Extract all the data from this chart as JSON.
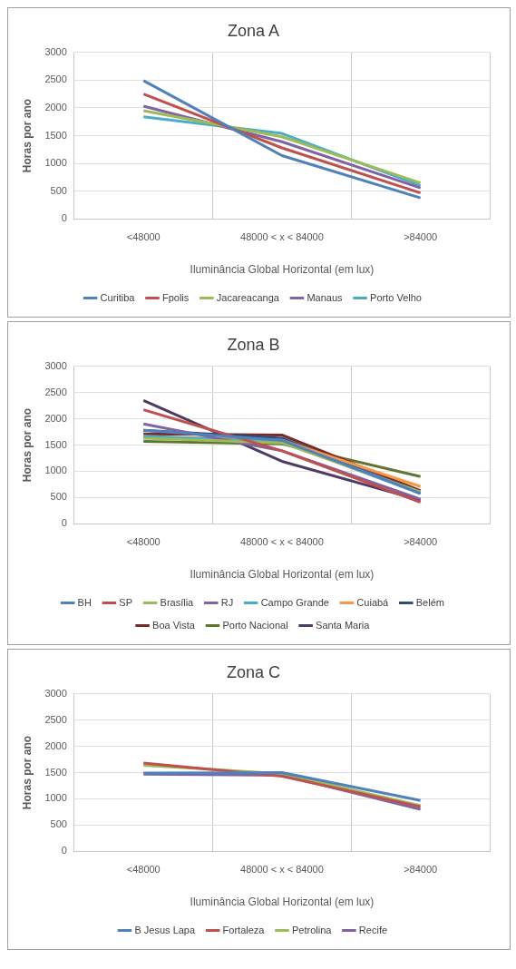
{
  "chart_data": [
    {
      "type": "line",
      "title": "Zona A",
      "xlabel": "Iluminância Global Horizontal (em lux)",
      "ylabel": "Horas por ano",
      "categories": [
        "<48000",
        "48000 < x < 84000",
        ">84000"
      ],
      "ylim": [
        0,
        3000
      ],
      "yticks": [
        0,
        500,
        1000,
        1500,
        2000,
        2500,
        3000
      ],
      "grid": true,
      "legend": "bottom",
      "marker": "none",
      "series": [
        {
          "name": "Curitiba",
          "color": "#4f81bd",
          "values": [
            2490,
            1140,
            380
          ]
        },
        {
          "name": "Fpolis",
          "color": "#c0504d",
          "values": [
            2250,
            1280,
            470
          ]
        },
        {
          "name": "Jacareacanga",
          "color": "#9bbb59",
          "values": [
            1950,
            1480,
            650
          ]
        },
        {
          "name": "Manaus",
          "color": "#8064a2",
          "values": [
            2030,
            1390,
            560
          ]
        },
        {
          "name": "Porto Velho",
          "color": "#4bacc6",
          "values": [
            1840,
            1540,
            600
          ]
        }
      ]
    },
    {
      "type": "line",
      "title": "Zona B",
      "xlabel": "Iluminância Global Horizontal (em lux)",
      "ylabel": "Horas por ano",
      "categories": [
        "<48000",
        "48000 < x < 84000",
        ">84000"
      ],
      "ylim": [
        0,
        3000
      ],
      "yticks": [
        0,
        500,
        1000,
        1500,
        2000,
        2500,
        3000
      ],
      "grid": true,
      "legend": "bottom",
      "marker": "none",
      "series": [
        {
          "name": "BH",
          "color": "#4f81bd",
          "values": [
            1780,
            1590,
            580
          ]
        },
        {
          "name": "SP",
          "color": "#c0504d",
          "values": [
            2170,
            1390,
            410
          ]
        },
        {
          "name": "Brasília",
          "color": "#9bbb59",
          "values": [
            1630,
            1540,
            610
          ]
        },
        {
          "name": "RJ",
          "color": "#8064a2",
          "values": [
            1900,
            1390,
            470
          ]
        },
        {
          "name": "Campo Grande",
          "color": "#4bacc6",
          "values": [
            1670,
            1560,
            580
          ]
        },
        {
          "name": "Cuiabá",
          "color": "#f79646",
          "values": [
            1660,
            1590,
            710
          ]
        },
        {
          "name": "Belém",
          "color": "#2c4d75",
          "values": [
            1780,
            1630,
            580
          ]
        },
        {
          "name": "Boa Vista",
          "color": "#772c2a",
          "values": [
            1710,
            1690,
            630
          ]
        },
        {
          "name": "Porto Nacional",
          "color": "#5f7530",
          "values": [
            1570,
            1520,
            900
          ]
        },
        {
          "name": "Santa Maria",
          "color": "#4d3b62",
          "values": [
            2350,
            1190,
            450
          ]
        }
      ]
    },
    {
      "type": "line",
      "title": "Zona C",
      "xlabel": "Iluminância Global Horizontal (em lux)",
      "ylabel": "Horas por ano",
      "categories": [
        "<48000",
        "48000 < x < 84000",
        ">84000"
      ],
      "ylim": [
        0,
        3000
      ],
      "yticks": [
        0,
        500,
        1000,
        1500,
        2000,
        2500,
        3000
      ],
      "grid": true,
      "legend": "bottom",
      "marker": "none",
      "series": [
        {
          "name": "B Jesus Lapa",
          "color": "#4f81bd",
          "values": [
            1490,
            1500,
            970
          ]
        },
        {
          "name": "Fortaleza",
          "color": "#c0504d",
          "values": [
            1680,
            1430,
            850
          ]
        },
        {
          "name": "Petrolina",
          "color": "#9bbb59",
          "values": [
            1640,
            1480,
            870
          ]
        },
        {
          "name": "Recife",
          "color": "#8064a2",
          "values": [
            1470,
            1450,
            800
          ]
        }
      ]
    }
  ]
}
